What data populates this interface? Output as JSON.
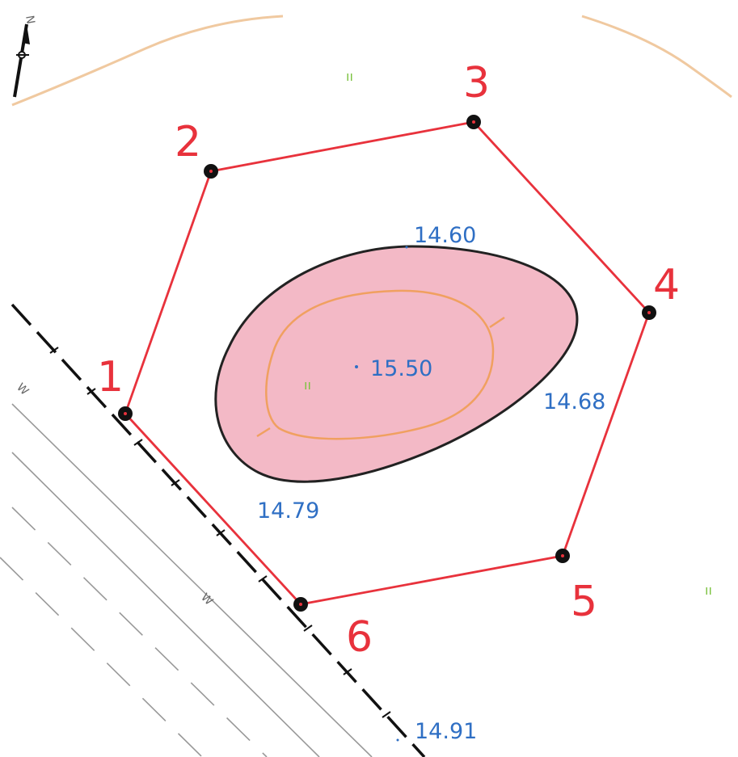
{
  "map": {
    "north_label": "N",
    "colors": {
      "boundary": "#e8323c",
      "elevation_text": "#2f6fc4",
      "hill_fill": "#f3b9c6",
      "contour": "#f0a060",
      "grass": "#7cc241"
    },
    "vertices": [
      {
        "id": "1",
        "label": "1"
      },
      {
        "id": "2",
        "label": "2"
      },
      {
        "id": "3",
        "label": "3"
      },
      {
        "id": "4",
        "label": "4"
      },
      {
        "id": "5",
        "label": "5"
      },
      {
        "id": "6",
        "label": "6"
      }
    ],
    "elevations": {
      "top": "14.60",
      "summit": "15.50",
      "right": "14.68",
      "left": "14.79",
      "bottom": "14.91"
    },
    "grass_symbol": "ıı",
    "road_marks": [
      "W",
      "W"
    ]
  }
}
